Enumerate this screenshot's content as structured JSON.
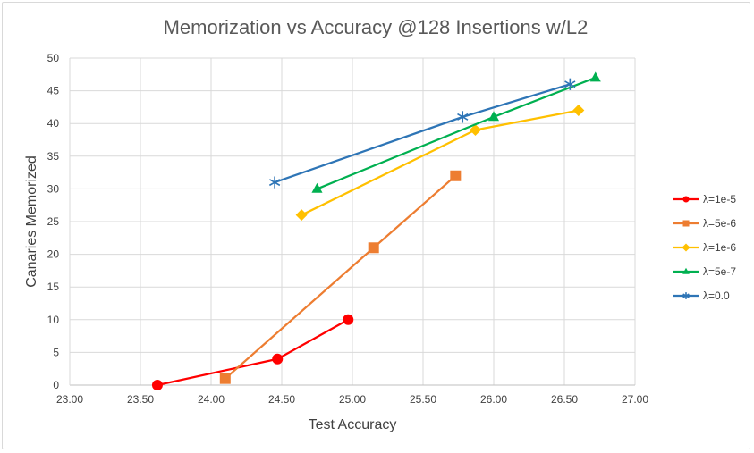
{
  "chart_data": {
    "type": "line",
    "title": "Memorization vs Accuracy @128 Insertions w/L2",
    "xlabel": "Test Accuracy",
    "ylabel": "Canaries Memorized",
    "xlim": [
      23.0,
      27.0
    ],
    "ylim": [
      0,
      50
    ],
    "x_ticks": [
      "23.00",
      "23.50",
      "24.00",
      "24.50",
      "25.00",
      "25.50",
      "26.00",
      "26.50",
      "27.00"
    ],
    "y_ticks": [
      "0",
      "5",
      "10",
      "15",
      "20",
      "25",
      "30",
      "35",
      "40",
      "45",
      "50"
    ],
    "grid": true,
    "legend_position": "right",
    "series": [
      {
        "name": "λ=1e-5",
        "color": "#ff0000",
        "marker": "circle",
        "x": [
          23.62,
          24.47,
          24.97
        ],
        "y": [
          0,
          4,
          10
        ]
      },
      {
        "name": "λ=5e-6",
        "color": "#ed7d31",
        "marker": "square",
        "x": [
          24.1,
          25.15,
          25.73
        ],
        "y": [
          1,
          21,
          32
        ]
      },
      {
        "name": "λ=1e-6",
        "color": "#ffc000",
        "marker": "diamond",
        "x": [
          24.64,
          25.87,
          26.6
        ],
        "y": [
          26,
          39,
          42
        ]
      },
      {
        "name": "λ=5e-7",
        "color": "#00b050",
        "marker": "triangle",
        "x": [
          24.75,
          26.0,
          26.72
        ],
        "y": [
          30,
          41,
          47
        ]
      },
      {
        "name": "λ=0.0",
        "color": "#2e75b6",
        "marker": "asterisk",
        "x": [
          24.45,
          25.78,
          26.54
        ],
        "y": [
          31,
          41,
          46
        ]
      }
    ]
  }
}
